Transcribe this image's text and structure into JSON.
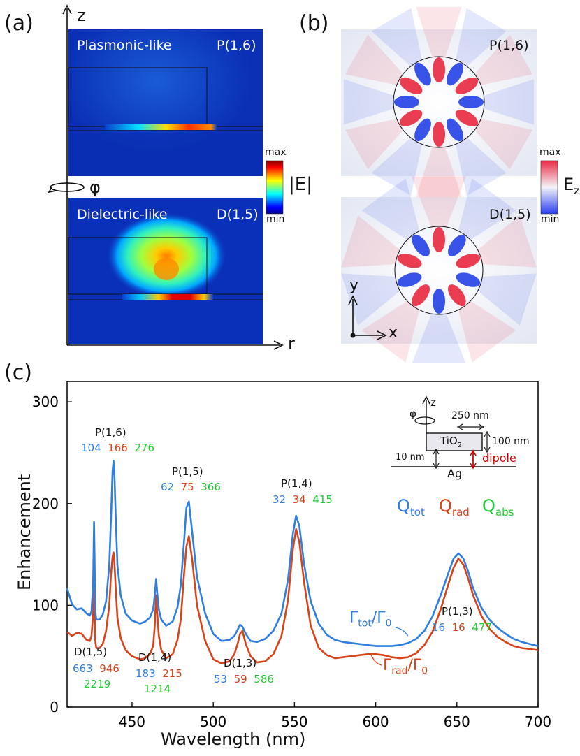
{
  "panel_a": {
    "label": "(a)",
    "axis_z": "z",
    "axis_r": "r",
    "phi": "φ",
    "top_mode_title": "Plasmonic-like",
    "top_mode_id": "P(1,6)",
    "bottom_mode_title": "Dielectric-like",
    "bottom_mode_id": "D(1,5)",
    "colorbar_max": "max",
    "colorbar_min": "min",
    "colorbar_quantity": "|E|"
  },
  "panel_b": {
    "label": "(b)",
    "top_mode_id": "P(1,6)",
    "bottom_mode_id": "D(1,5)",
    "axis_x": "x",
    "axis_y": "y",
    "colorbar_max": "max",
    "colorbar_min": "min",
    "colorbar_quantity_main": "E",
    "colorbar_quantity_sub": "z"
  },
  "panel_c": {
    "label": "(c)",
    "inset": {
      "z": "z",
      "phi": "φ",
      "width_label": "250 nm",
      "height_label": "100 nm",
      "material": "TiO",
      "material_sub": "2",
      "gap_label": "10 nm",
      "dipole_label": "dipole",
      "substrate": "Ag"
    },
    "q_legend": [
      {
        "main": "Q",
        "sub": "tot",
        "color": "#2f7fe0"
      },
      {
        "main": "Q",
        "sub": "rad",
        "color": "#d8431a"
      },
      {
        "main": "Q",
        "sub": "abs",
        "color": "#22cc33"
      }
    ],
    "gamma_tot": {
      "g": "Γ",
      "sub": "tot",
      "sep": "/",
      "g0": "Γ",
      "sub0": "0"
    },
    "gamma_rad": {
      "g": "Γ",
      "sub": "rad",
      "sep": "/",
      "g0": "Γ",
      "sub0": "0"
    },
    "modes": [
      {
        "name": "P(1,6)",
        "tot": "104",
        "rad": "166",
        "abs": "276"
      },
      {
        "name": "P(1,5)",
        "tot": "62",
        "rad": "75",
        "abs": "366"
      },
      {
        "name": "P(1,4)",
        "tot": "32",
        "rad": "34",
        "abs": "415"
      },
      {
        "name": "P(1,3)",
        "tot": "16",
        "rad": "16",
        "abs": "477"
      },
      {
        "name": "D(1,5)",
        "tot": "663",
        "rad": "946",
        "abs": "2219"
      },
      {
        "name": "D(1,4)",
        "tot": "183",
        "rad": "215",
        "abs": "1214"
      },
      {
        "name": "D(1,3)",
        "tot": "53",
        "rad": "59",
        "abs": "586"
      }
    ]
  },
  "chart_data": {
    "type": "line",
    "title": "",
    "xlabel": "Wavelength (nm)",
    "ylabel": "Enhancement",
    "xlim": [
      410,
      700
    ],
    "ylim": [
      0,
      320
    ],
    "xticks": [
      450,
      500,
      550,
      600,
      650,
      700
    ],
    "yticks": [
      0,
      100,
      200,
      300
    ],
    "series": [
      {
        "name": "Γtot/Γ0",
        "color": "#2f7fe0",
        "x": [
          410,
          413,
          416,
          419,
          422,
          424,
          425,
          426,
          426.6,
          427,
          427.4,
          428,
          430,
          432,
          434,
          436,
          437,
          438,
          438.6,
          439.2,
          440,
          441,
          443,
          446,
          450,
          455,
          458,
          461,
          463,
          464,
          464.8,
          465.5,
          466.5,
          468,
          471,
          475,
          478,
          480,
          482,
          483.5,
          485,
          487,
          490,
          495,
          500,
          505,
          510,
          513,
          515,
          516.5,
          518,
          520,
          523,
          527,
          532,
          537,
          542,
          546,
          549,
          551,
          553,
          556,
          560,
          565,
          570,
          575,
          580,
          585,
          590,
          595,
          600,
          605,
          610,
          615,
          620,
          625,
          630,
          635,
          640,
          645,
          648,
          651,
          654,
          657,
          660,
          665,
          670,
          675,
          680,
          685,
          690,
          695,
          700
        ],
        "y": [
          117,
          101,
          96,
          97,
          92,
          90,
          94,
          120,
          182,
          140,
          94,
          86,
          86,
          91,
          104,
          140,
          185,
          232,
          242,
          225,
          185,
          140,
          110,
          92,
          85,
          82,
          84,
          88,
          96,
          110,
          126,
          112,
          96,
          86,
          80,
          84,
          98,
          120,
          162,
          196,
          202,
          172,
          128,
          92,
          72,
          65,
          66,
          70,
          76,
          81,
          79,
          72,
          65,
          64,
          67,
          75,
          92,
          125,
          170,
          188,
          178,
          140,
          104,
          82,
          71,
          66,
          64,
          63,
          62,
          61,
          60,
          60,
          60,
          61,
          63,
          67,
          75,
          89,
          110,
          133,
          146,
          151,
          146,
          133,
          117,
          98,
          86,
          78,
          72,
          67,
          64,
          62,
          60
        ]
      },
      {
        "name": "Γrad/Γ0",
        "color": "#d8431a",
        "x": [
          410,
          413,
          416,
          419,
          422,
          424,
          425,
          426,
          426.6,
          427,
          427.4,
          428,
          430,
          432,
          434,
          436,
          437,
          438,
          438.6,
          439.2,
          440,
          441,
          443,
          446,
          450,
          455,
          458,
          461,
          463,
          464,
          464.8,
          465.5,
          466.5,
          468,
          471,
          475,
          478,
          480,
          482,
          483.5,
          485,
          487,
          490,
          495,
          500,
          505,
          510,
          513,
          515,
          516.5,
          518,
          520,
          523,
          527,
          532,
          537,
          542,
          546,
          549,
          551,
          553,
          556,
          560,
          565,
          570,
          575,
          580,
          585,
          590,
          595,
          600,
          605,
          610,
          615,
          620,
          625,
          630,
          635,
          640,
          645,
          648,
          651,
          654,
          657,
          660,
          665,
          670,
          675,
          680,
          685,
          690,
          695,
          700
        ],
        "y": [
          74,
          70,
          73,
          72,
          66,
          65,
          70,
          90,
          125,
          100,
          65,
          58,
          58,
          62,
          75,
          100,
          130,
          148,
          152,
          140,
          115,
          88,
          68,
          56,
          50,
          47,
          48,
          52,
          60,
          80,
          110,
          92,
          70,
          56,
          48,
          52,
          66,
          86,
          130,
          158,
          168,
          145,
          100,
          65,
          47,
          43,
          45,
          52,
          62,
          72,
          75,
          62,
          50,
          44,
          45,
          52,
          70,
          105,
          155,
          175,
          162,
          122,
          80,
          58,
          51,
          48,
          49,
          50,
          51,
          52,
          52,
          51,
          49,
          48,
          49,
          53,
          61,
          74,
          96,
          122,
          137,
          146,
          140,
          126,
          110,
          90,
          77,
          69,
          64,
          60,
          58,
          57,
          56
        ]
      }
    ]
  }
}
